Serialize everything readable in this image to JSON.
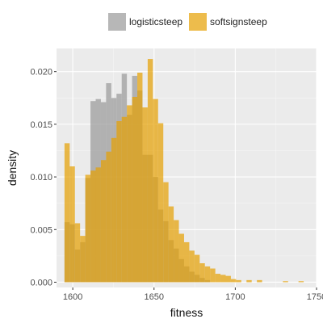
{
  "chart_data": {
    "type": "histogram",
    "xlabel": "fitness",
    "ylabel": "density",
    "xlim": [
      1590,
      1750
    ],
    "ylim": [
      -0.0005,
      0.0222
    ],
    "x_ticks": [
      1600,
      1650,
      1700,
      1750
    ],
    "x_tick_labels": [
      "1600",
      "1650",
      "1700",
      "1750"
    ],
    "y_ticks": [
      0.0,
      0.005,
      0.01,
      0.015,
      0.02
    ],
    "y_tick_labels": [
      "0.000",
      "0.005",
      "0.010",
      "0.015",
      "0.020"
    ],
    "bin_width": 3.2,
    "grid": true,
    "legend_position": "top",
    "bin_edges": [
      1594.9,
      1598.1,
      1601.3,
      1604.5,
      1607.7,
      1610.9,
      1614.1,
      1617.3,
      1620.5,
      1623.7,
      1626.9,
      1630.1,
      1633.3,
      1636.5,
      1639.7,
      1642.9,
      1646.1,
      1649.3,
      1652.5,
      1655.7,
      1658.9,
      1662.1,
      1665.3,
      1668.5,
      1671.7,
      1674.9,
      1678.1,
      1681.3,
      1684.5,
      1687.7,
      1690.9,
      1694.1,
      1697.3,
      1700.5,
      1703.7,
      1706.9,
      1710.1,
      1713.3,
      1716.5,
      1719.7,
      1722.9,
      1726.1,
      1729.3,
      1732.5,
      1735.7,
      1738.9,
      1742.1
    ],
    "series": [
      {
        "name": "logisticsteep",
        "color": "#999999",
        "alpha": 0.7,
        "values": [
          0.0057,
          0.0055,
          0.0031,
          0.0038,
          0.0099,
          0.0172,
          0.0174,
          0.0171,
          0.0189,
          0.0175,
          0.0179,
          0.0198,
          0.0159,
          0.0196,
          0.0182,
          0.0121,
          0.0121,
          0.01,
          0.0069,
          0.0058,
          0.004,
          0.0032,
          0.0022,
          0.0015,
          0.001,
          0.0007,
          0.0004,
          0.0002,
          0.0,
          0.0,
          0.0,
          0.0,
          0.0,
          0.0,
          0.0,
          0.0,
          0.0,
          0.0,
          0.0,
          0.0,
          0.0,
          0.0,
          0.0,
          0.0,
          0.0,
          0.0
        ]
      },
      {
        "name": "softsignsteep",
        "color": "#E69F00",
        "alpha": 0.7,
        "values": [
          0.0132,
          0.011,
          0.0056,
          0.0044,
          0.0102,
          0.0106,
          0.0109,
          0.0116,
          0.0124,
          0.0137,
          0.0153,
          0.0157,
          0.0168,
          0.0176,
          0.0199,
          0.0166,
          0.0212,
          0.0174,
          0.0151,
          0.0095,
          0.0072,
          0.0059,
          0.0046,
          0.0038,
          0.003,
          0.0026,
          0.0018,
          0.0015,
          0.0013,
          0.0008,
          0.0007,
          0.0006,
          0.0003,
          0.0002,
          0.0,
          0.0002,
          0.0,
          0.0002,
          0.0,
          0.0,
          0.0,
          0.0,
          0.0001,
          0.0,
          0.0,
          0.0001
        ]
      }
    ]
  }
}
